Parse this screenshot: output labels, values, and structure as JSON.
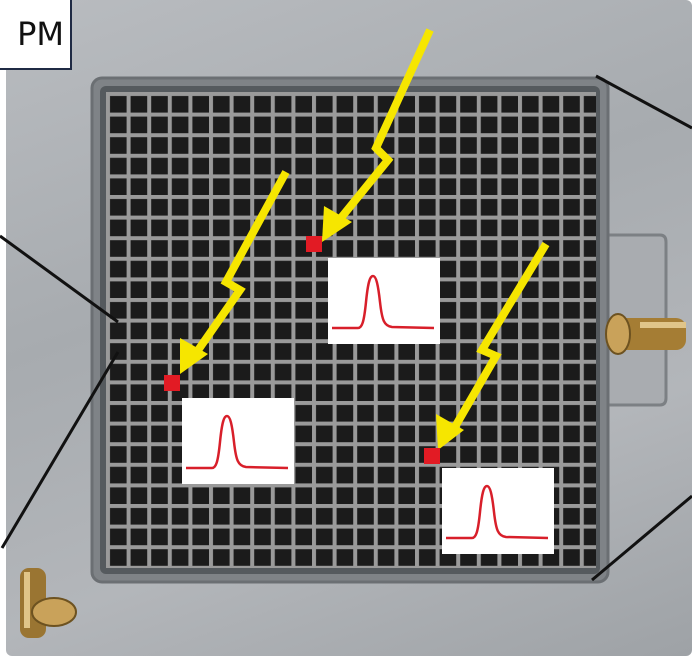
{
  "label": {
    "text": "PM"
  },
  "colors": {
    "arrow": "#f6e600",
    "pixel": "#e21b24",
    "pulse": "#d81f2a",
    "grid_bg": "#1b1b1b",
    "grid_line": "#9a9a9a",
    "plate": "#b1b4b8"
  },
  "hits": [
    {
      "id": "hit-1",
      "pulse_icon": "signal-pulse-icon"
    },
    {
      "id": "hit-2",
      "pulse_icon": "signal-pulse-icon"
    },
    {
      "id": "hit-3",
      "pulse_icon": "signal-pulse-icon"
    }
  ]
}
